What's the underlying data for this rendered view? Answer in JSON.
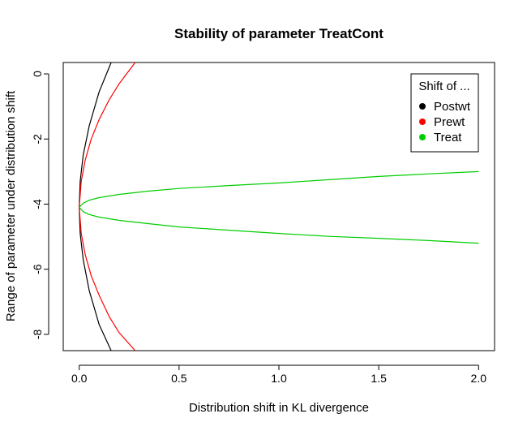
{
  "chart_data": {
    "type": "line",
    "title": "Stability of parameter TreatCont",
    "xlabel": "Distribution shift in KL divergence",
    "ylabel": "Range of parameter under distribution shift",
    "xlim": [
      -0.08,
      2.08
    ],
    "ylim": [
      -8.5,
      0.35
    ],
    "x_ticks": [
      "0.0",
      "0.5",
      "1.0",
      "1.5",
      "2.0"
    ],
    "y_ticks": [
      "0",
      "-2",
      "-4",
      "-6",
      "-8"
    ],
    "grid": false,
    "legend": {
      "title": "Shift of ...",
      "placement": "top-right",
      "entries": [
        {
          "name": "Postwt",
          "color": "#000000"
        },
        {
          "name": "Prewt",
          "color": "#ff0000"
        },
        {
          "name": "Treat",
          "color": "#00cd00"
        }
      ]
    },
    "series": [
      {
        "name": "Postwt",
        "color": "#000000",
        "upper": {
          "x": [
            0,
            0.005,
            0.02,
            0.05,
            0.1,
            0.16,
            0.2
          ],
          "y": [
            -4.1,
            -3.3,
            -2.5,
            -1.6,
            -0.55,
            0.35,
            0.9
          ]
        },
        "lower": {
          "x": [
            0,
            0.005,
            0.02,
            0.05,
            0.1,
            0.16,
            0.2
          ],
          "y": [
            -4.1,
            -4.9,
            -5.7,
            -6.65,
            -7.7,
            -8.5,
            -9.1
          ]
        }
      },
      {
        "name": "Prewt",
        "color": "#ff0000",
        "upper": {
          "x": [
            0,
            0.01,
            0.03,
            0.06,
            0.1,
            0.15,
            0.2,
            0.28
          ],
          "y": [
            -4.1,
            -3.3,
            -2.65,
            -2.0,
            -1.4,
            -0.8,
            -0.3,
            0.35
          ]
        },
        "lower": {
          "x": [
            0,
            0.01,
            0.03,
            0.06,
            0.1,
            0.15,
            0.2,
            0.28
          ],
          "y": [
            -4.1,
            -4.9,
            -5.55,
            -6.2,
            -6.8,
            -7.45,
            -7.95,
            -8.5
          ]
        }
      },
      {
        "name": "Treat",
        "color": "#00cd00",
        "upper": {
          "x": [
            0,
            0.02,
            0.05,
            0.1,
            0.2,
            0.35,
            0.5,
            0.75,
            1.0,
            1.25,
            1.5,
            1.75,
            2.0
          ],
          "y": [
            -4.1,
            -3.97,
            -3.88,
            -3.8,
            -3.7,
            -3.6,
            -3.52,
            -3.43,
            -3.35,
            -3.25,
            -3.15,
            -3.07,
            -3.0
          ]
        },
        "lower": {
          "x": [
            0,
            0.02,
            0.05,
            0.1,
            0.2,
            0.35,
            0.5,
            0.75,
            1.0,
            1.25,
            1.5,
            1.75,
            2.0
          ],
          "y": [
            -4.1,
            -4.23,
            -4.32,
            -4.4,
            -4.5,
            -4.6,
            -4.7,
            -4.8,
            -4.9,
            -4.99,
            -5.05,
            -5.12,
            -5.2
          ]
        }
      }
    ]
  }
}
